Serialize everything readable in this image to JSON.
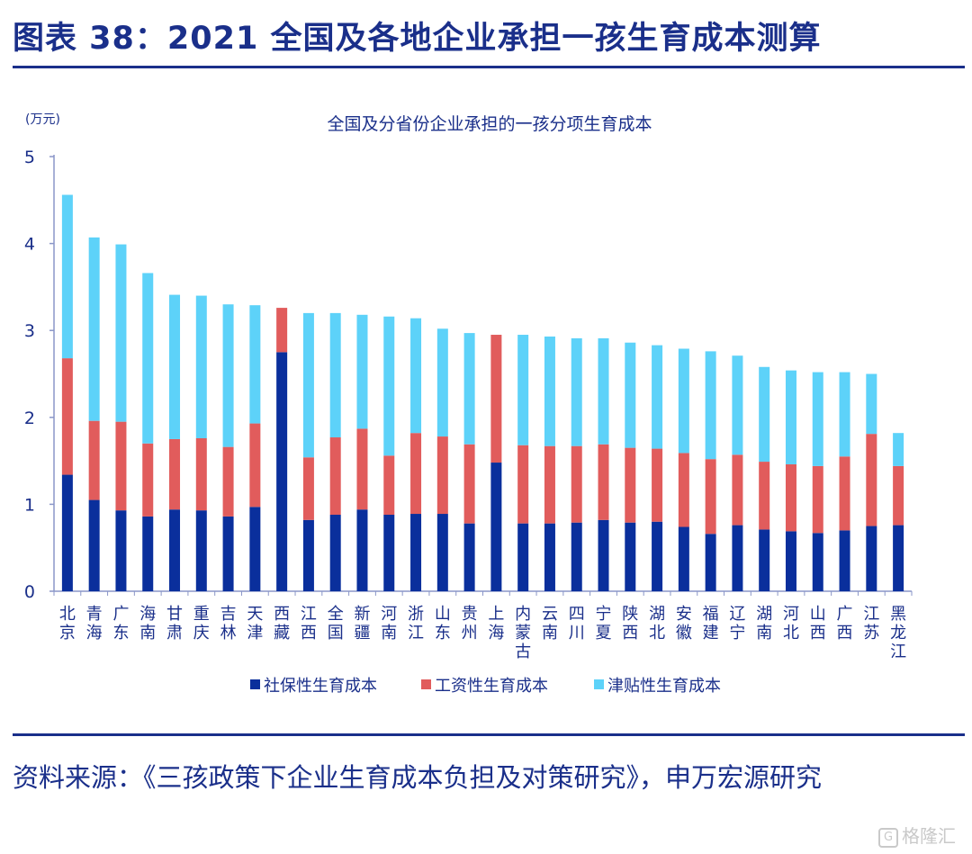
{
  "figure": {
    "title": "图表 38：2021 全国及各地企业承担一孩生育成本测算",
    "source": "资料来源：《三孩政策下企业生育成本负担及对策研究》，申万宏源研究",
    "watermark": "格隆汇",
    "watermark_icon": "logo-icon"
  },
  "chart_data": {
    "type": "bar",
    "stacked": true,
    "title": "全国及分省份企业承担的一孩分项生育成本",
    "unit_label": "(万元)",
    "xlabel": "",
    "ylabel": "",
    "ylim": [
      0,
      5
    ],
    "yticks": [
      0,
      1,
      2,
      3,
      4,
      5
    ],
    "grid": false,
    "legend_position": "bottom",
    "categories": [
      "北京",
      "青海",
      "广东",
      "海南",
      "甘肃",
      "重庆",
      "吉林",
      "天津",
      "西藏",
      "江西",
      "全国",
      "新疆",
      "河南",
      "浙江",
      "山东",
      "贵州",
      "上海",
      "内蒙古",
      "云南",
      "四川",
      "宁夏",
      "陕西",
      "湖北",
      "安徽",
      "福建",
      "辽宁",
      "湖南",
      "河北",
      "山西",
      "广西",
      "江苏",
      "黑龙江"
    ],
    "series": [
      {
        "name": "社保性生育成本",
        "color": "#0a2f9c",
        "values": [
          1.34,
          1.05,
          0.93,
          0.86,
          0.94,
          0.93,
          0.86,
          0.97,
          2.75,
          0.82,
          0.88,
          0.94,
          0.88,
          0.89,
          0.89,
          0.78,
          1.48,
          0.78,
          0.78,
          0.79,
          0.82,
          0.79,
          0.8,
          0.74,
          0.66,
          0.76,
          0.71,
          0.69,
          0.67,
          0.7,
          0.75,
          0.76
        ]
      },
      {
        "name": "工资性生育成本",
        "color": "#e15c5c",
        "values": [
          1.34,
          0.91,
          1.02,
          0.84,
          0.81,
          0.83,
          0.8,
          0.96,
          0.51,
          0.72,
          0.89,
          0.93,
          0.68,
          0.93,
          0.89,
          0.91,
          1.47,
          0.9,
          0.89,
          0.88,
          0.87,
          0.86,
          0.84,
          0.85,
          0.86,
          0.81,
          0.78,
          0.77,
          0.77,
          0.85,
          1.06,
          0.68
        ]
      },
      {
        "name": "津贴性生育成本",
        "color": "#5dd2f9",
        "values": [
          1.88,
          2.11,
          2.04,
          1.96,
          1.66,
          1.64,
          1.64,
          1.36,
          0,
          1.66,
          1.43,
          1.31,
          1.6,
          1.32,
          1.24,
          1.28,
          0,
          1.27,
          1.26,
          1.24,
          1.22,
          1.21,
          1.19,
          1.2,
          1.24,
          1.14,
          1.09,
          1.08,
          1.08,
          0.97,
          0.69,
          0.38
        ]
      }
    ]
  }
}
